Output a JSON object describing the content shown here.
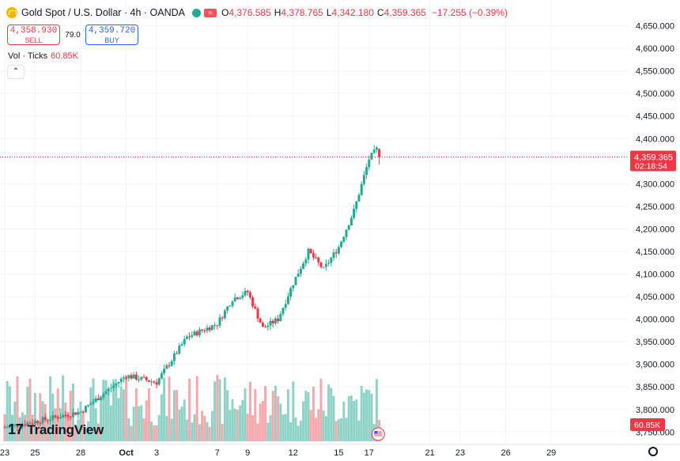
{
  "header": {
    "symbol_title": "Gold Spot / U.S. Dollar · 4h · OANDA",
    "ohlc": [
      {
        "key": "O",
        "value": "4,376.585"
      },
      {
        "key": "H",
        "value": "4,378.765"
      },
      {
        "key": "L",
        "value": "4,342.180"
      },
      {
        "key": "C",
        "value": "4,359.365"
      }
    ],
    "change": "−17.255 (−0.39%)"
  },
  "trade": {
    "sell_price": "4,358.930",
    "sell_label": "SELL",
    "spread": "79.0",
    "buy_price": "4,359.720",
    "buy_label": "BUY"
  },
  "volume_legend": {
    "label": "Vol · Ticks",
    "value": "60.85K"
  },
  "logo_text": "TradingView",
  "colors": {
    "up": "#22ab94",
    "down": "#f23645",
    "up_vol": "#8fd3c8",
    "down_vol": "#f4a9ac",
    "price_line": "#f23645"
  },
  "icons": [
    "gold-symbol-icon",
    "eye-icon",
    "flag-icon",
    "chevron-up-icon",
    "settings-gear-icon",
    "us-flag-event-icon"
  ],
  "chart_data": {
    "type": "candlestick",
    "title": "Gold Spot / U.S. Dollar · 4h · OANDA",
    "y_axis": {
      "ticks": [
        "4,650.000",
        "4,600.000",
        "4,550.000",
        "4,500.000",
        "4,450.000",
        "4,400.000",
        "4,350.000",
        "4,300.000",
        "4,250.000",
        "4,200.000",
        "4,150.000",
        "4,100.000",
        "4,050.000",
        "4,000.000",
        "3,950.000",
        "3,900.000",
        "3,850.000",
        "3,800.000",
        "3,750.000"
      ],
      "tick_values": [
        4650,
        4600,
        4550,
        4500,
        4450,
        4400,
        4350,
        4300,
        4250,
        4200,
        4150,
        4100,
        4050,
        4000,
        3950,
        3900,
        3850,
        3800,
        3750
      ],
      "range": [
        3740,
        4665
      ]
    },
    "x_axis": {
      "ticks": [
        "23",
        "25",
        "28",
        "Oct",
        "3",
        "7",
        "9",
        "12",
        "15",
        "17",
        "21",
        "23",
        "26",
        "29"
      ],
      "day_index": [
        0,
        2,
        5,
        8,
        10,
        14,
        16,
        19,
        22,
        24,
        28,
        30,
        33,
        36
      ]
    },
    "last_price": {
      "value": 4359.365,
      "label": "4,359.365",
      "countdown": "02:18:54"
    },
    "volume_label": "60.85K",
    "key_points": [
      {
        "day": 0,
        "close": 3760
      },
      {
        "day": 3,
        "close": 3780
      },
      {
        "day": 5,
        "close": 3795
      },
      {
        "day": 8,
        "close": 3875
      },
      {
        "day": 10,
        "close": 3860
      },
      {
        "day": 12,
        "close": 3960
      },
      {
        "day": 14,
        "close": 3990
      },
      {
        "day": 15,
        "close": 4045
      },
      {
        "day": 16,
        "close": 4060
      },
      {
        "day": 17,
        "close": 3980
      },
      {
        "day": 18,
        "close": 4000
      },
      {
        "day": 19,
        "close": 4080
      },
      {
        "day": 20,
        "close": 4150
      },
      {
        "day": 21,
        "close": 4110
      },
      {
        "day": 22,
        "close": 4160
      },
      {
        "day": 23,
        "close": 4240
      },
      {
        "day": 24,
        "close": 4355
      },
      {
        "day": 24.5,
        "close": 4376.585
      },
      {
        "day": 24.7,
        "close": 4359.365
      }
    ]
  }
}
